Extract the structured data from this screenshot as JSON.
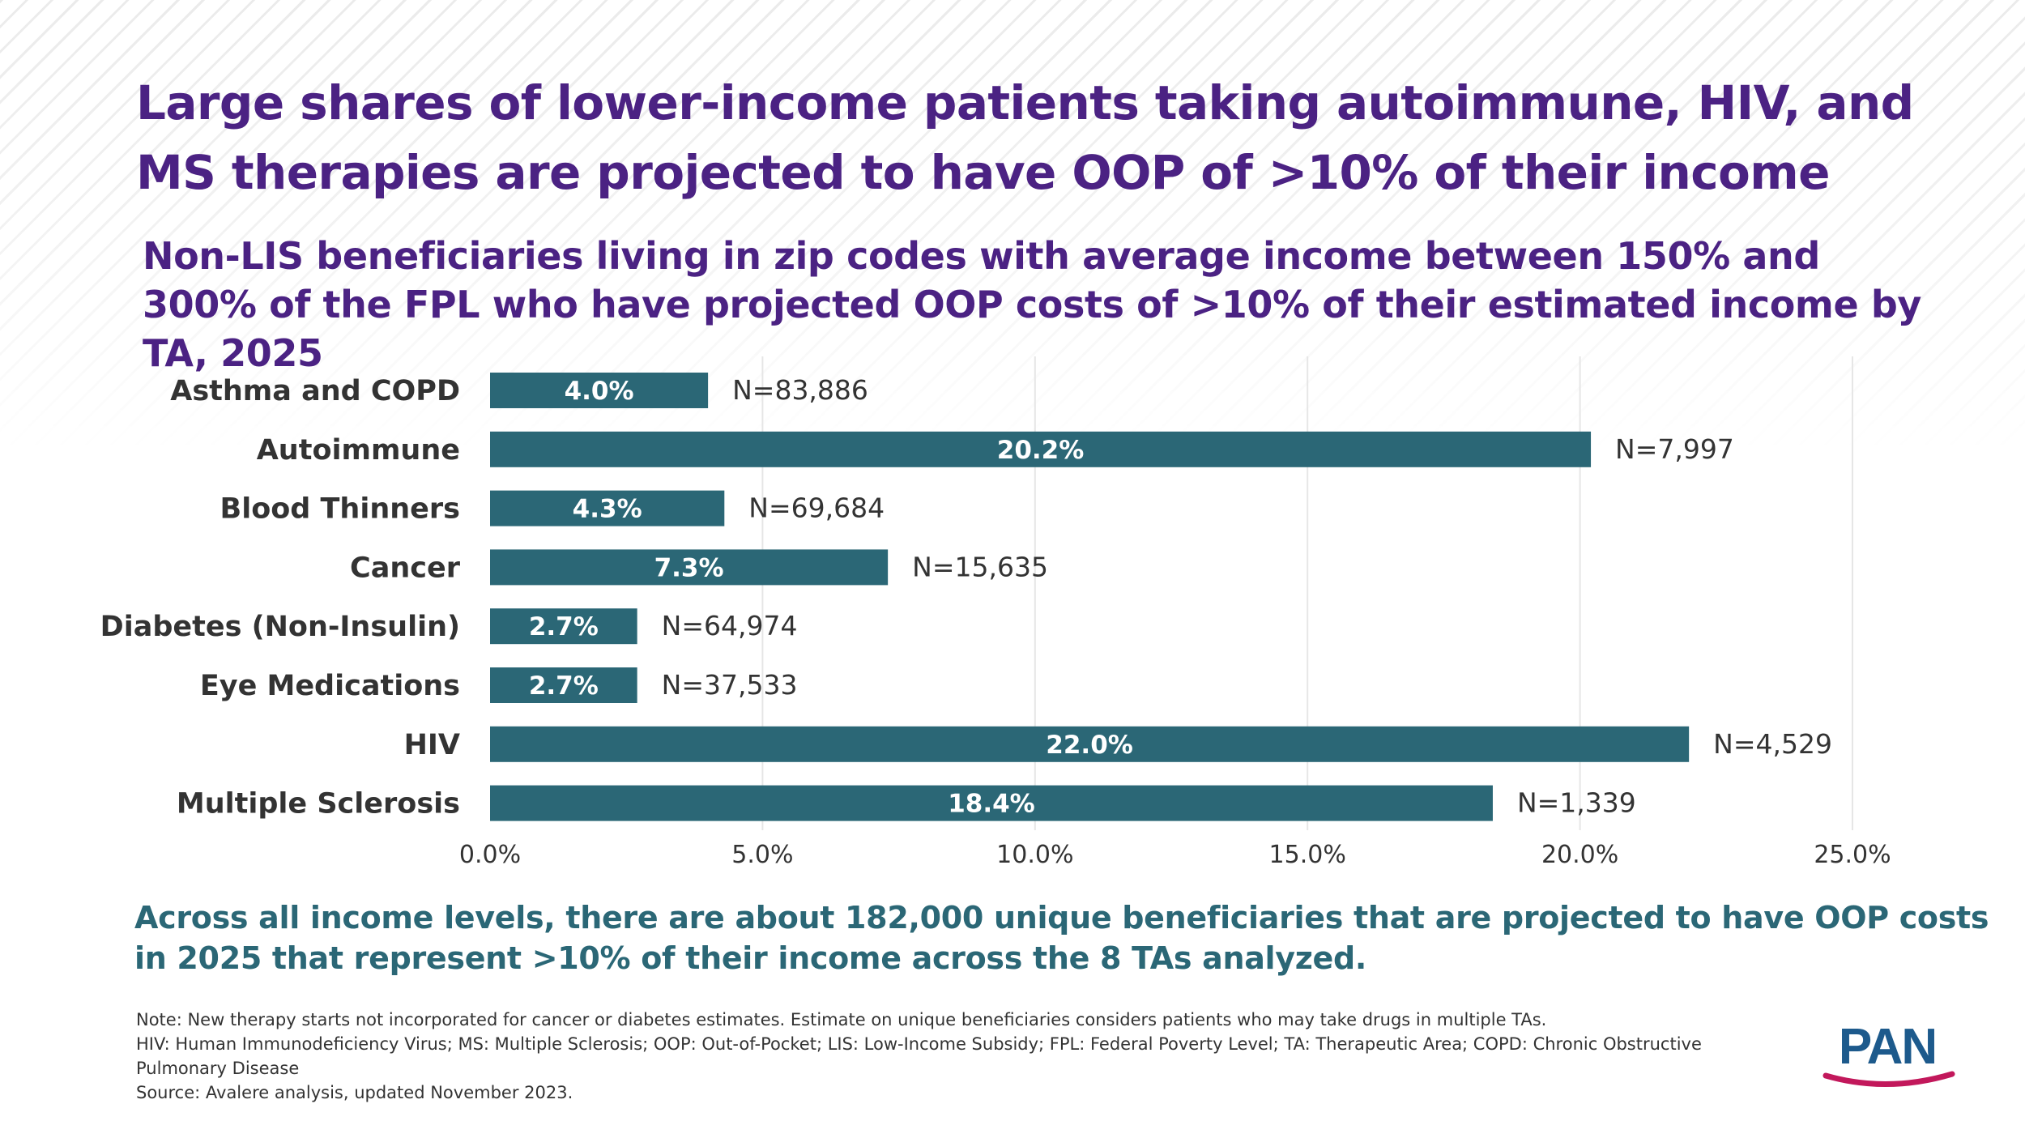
{
  "title": "Large shares of lower-income patients taking autoimmune, HIV, and MS therapies are projected to have OOP of >10% of their income",
  "subtitle": "Non-LIS beneficiaries living in zip codes with average income between 150% and 300% of the FPL who have projected OOP costs of >10% of their estimated income by TA, 2025",
  "takeaway": "Across all income levels, there are about 182,000 unique beneficiaries that are projected to have OOP costs in 2025 that represent >10% of their income across the 8 TAs analyzed.",
  "notes": {
    "note": "Note: New therapy starts not incorporated for cancer or diabetes estimates. Estimate on unique beneficiaries considers patients who may take drugs in multiple TAs.",
    "abbreviations": "HIV: Human Immunodeficiency Virus; MS: Multiple Sclerosis; OOP: Out-of-Pocket; LIS: Low-Income Subsidy; FPL: Federal Poverty Level; TA: Therapeutic Area; COPD: Chronic Obstructive Pulmonary Disease",
    "source": "Source: Avalere analysis, updated November 2023."
  },
  "logo": {
    "text": "PAN"
  },
  "colors": {
    "title": "#4b2283",
    "bar": "#2b6776",
    "takeaway": "#2b6776",
    "grid": "#e6e6e6",
    "logo_text": "#1d5a8c",
    "logo_arc": "#c2185b"
  },
  "chart_data": {
    "type": "bar",
    "orientation": "horizontal",
    "categories": [
      "Asthma and COPD",
      "Autoimmune",
      "Blood Thinners",
      "Cancer",
      "Diabetes (Non-Insulin)",
      "Eye Medications",
      "HIV",
      "Multiple Sclerosis"
    ],
    "values": [
      4.0,
      20.2,
      4.3,
      7.3,
      2.7,
      2.7,
      22.0,
      18.4
    ],
    "value_labels": [
      "4.0%",
      "20.2%",
      "4.3%",
      "7.3%",
      "2.7%",
      "2.7%",
      "22.0%",
      "18.4%"
    ],
    "n_labels": [
      "N=83,886",
      "N=7,997",
      "N=69,684",
      "N=15,635",
      "N=64,974",
      "N=37,533",
      "N=4,529",
      "N=1,339"
    ],
    "xlim": [
      0,
      25
    ],
    "xticks": [
      0,
      5,
      10,
      15,
      20,
      25
    ],
    "xtick_labels": [
      "0.0%",
      "5.0%",
      "10.0%",
      "15.0%",
      "20.0%",
      "25.0%"
    ],
    "grid": true,
    "xlabel": "",
    "ylabel": ""
  }
}
